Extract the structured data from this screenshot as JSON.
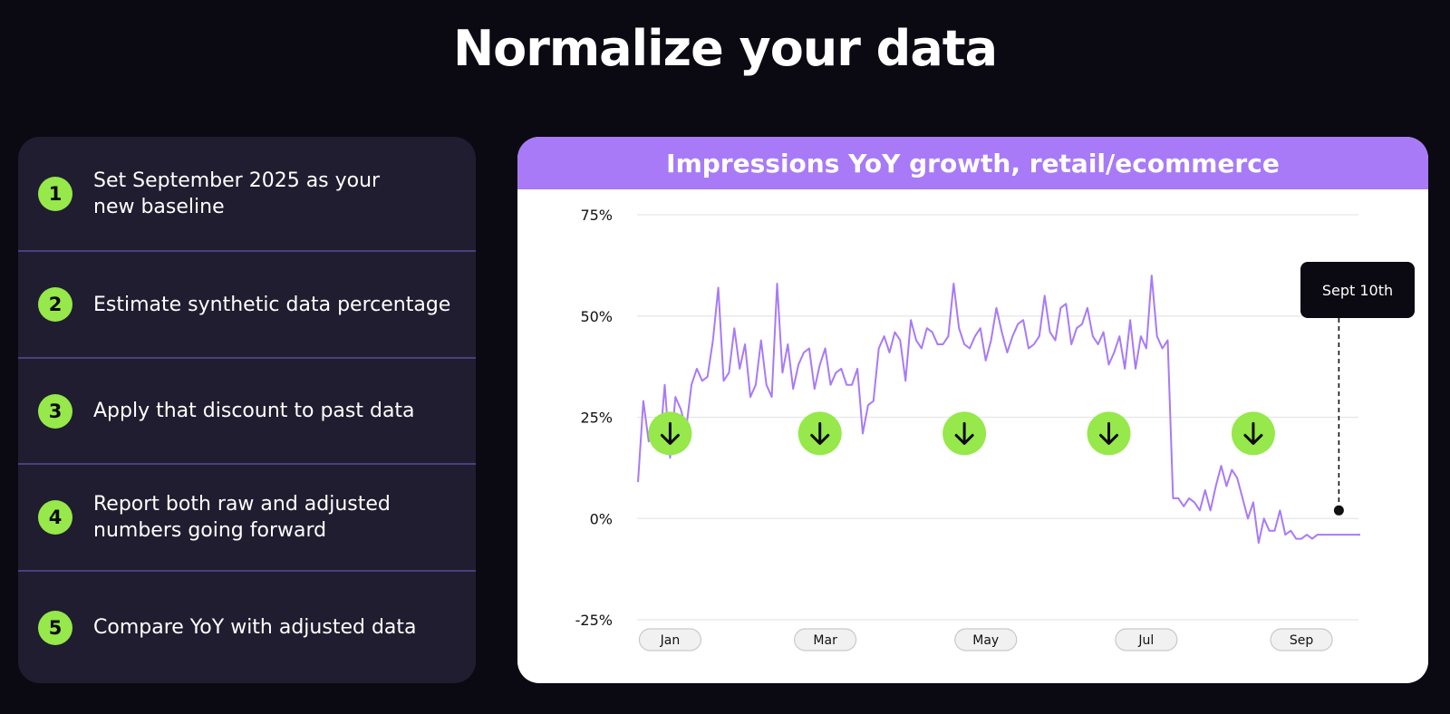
{
  "page": {
    "title": "Normalize your data"
  },
  "steps": [
    {
      "number": "1",
      "text": "Set September 2025 as your new baseline"
    },
    {
      "number": "2",
      "text": "Estimate synthetic data percentage"
    },
    {
      "number": "3",
      "text": "Apply that discount to past data"
    },
    {
      "number": "4",
      "text": "Report both raw and adjusted numbers going forward"
    },
    {
      "number": "5",
      "text": "Compare YoY with adjusted data"
    }
  ],
  "colors": {
    "background": "#0b0a12",
    "panel": "#201d30",
    "accent_green": "#96e84b",
    "accent_purple": "#a87af7",
    "divider": "#4a3f80"
  },
  "chart_data": {
    "type": "line",
    "title": "Impressions YoY growth, retail/ecommerce",
    "xlabel": "",
    "ylabel": "",
    "ylim": [
      -25,
      75
    ],
    "xlim": [
      0,
      270
    ],
    "yticks": [
      75,
      50,
      25,
      0,
      -25
    ],
    "ytick_labels": [
      "75%",
      "50%",
      "25%",
      "0%",
      "-25%"
    ],
    "x_month_labels": [
      {
        "label": "Jan",
        "x": 12
      },
      {
        "label": "Mar",
        "x": 70
      },
      {
        "label": "May",
        "x": 130
      },
      {
        "label": "Jul",
        "x": 190
      },
      {
        "label": "Sep",
        "x": 248
      }
    ],
    "grid": true,
    "series": [
      {
        "name": "Impressions YoY growth",
        "color": "#a87af7",
        "x": [
          0,
          2,
          4,
          6,
          8,
          10,
          12,
          14,
          16,
          18,
          20,
          22,
          24,
          26,
          28,
          30,
          32,
          34,
          36,
          38,
          40,
          42,
          44,
          46,
          48,
          50,
          52,
          54,
          56,
          58,
          60,
          62,
          64,
          66,
          68,
          70,
          72,
          74,
          76,
          78,
          80,
          82,
          84,
          86,
          88,
          90,
          92,
          94,
          96,
          98,
          100,
          102,
          104,
          106,
          108,
          110,
          112,
          114,
          116,
          118,
          120,
          122,
          124,
          126,
          128,
          130,
          132,
          134,
          136,
          138,
          140,
          142,
          144,
          146,
          148,
          150,
          152,
          154,
          156,
          158,
          160,
          162,
          164,
          166,
          168,
          170,
          172,
          174,
          176,
          178,
          180,
          182,
          184,
          186,
          188,
          190,
          192,
          194,
          196,
          198,
          200,
          202,
          204,
          206,
          208,
          210,
          212,
          214,
          216,
          218,
          220,
          222,
          224,
          226,
          228,
          230,
          232,
          234,
          236,
          238,
          240,
          242,
          244,
          246,
          248,
          250,
          252,
          254,
          256,
          258,
          260,
          262,
          264,
          266,
          268,
          270
        ],
        "values": [
          9,
          29,
          19,
          24,
          17,
          33,
          15,
          30,
          27,
          22,
          33,
          37,
          34,
          35,
          44,
          57,
          34,
          36,
          47,
          37,
          43,
          30,
          33,
          44,
          33,
          30,
          58,
          36,
          43,
          32,
          38,
          41,
          42,
          32,
          38,
          42,
          33,
          36,
          37,
          33,
          33,
          37,
          21,
          28,
          29,
          42,
          45,
          41,
          46,
          44,
          34,
          49,
          44,
          42,
          47,
          46,
          43,
          43,
          45,
          58,
          47,
          43,
          42,
          45,
          47,
          39,
          44,
          52,
          46,
          41,
          45,
          48,
          49,
          42,
          43,
          45,
          55,
          46,
          44,
          52,
          53,
          43,
          47,
          48,
          52,
          45,
          43,
          46,
          38,
          41,
          45,
          37,
          49,
          37,
          45,
          42,
          60,
          45,
          42,
          44,
          5,
          5,
          3,
          5,
          4,
          2,
          7,
          2,
          8,
          13,
          8,
          12,
          10,
          5,
          0,
          4,
          -6,
          0,
          -3,
          -3,
          2,
          -4,
          -3,
          -5,
          -5,
          -4,
          -5,
          -4,
          -4,
          -4,
          -4,
          -4,
          -4,
          -4,
          -4,
          -4
        ]
      }
    ],
    "markers": [
      {
        "type": "down-arrow",
        "x": 12,
        "y": 21
      },
      {
        "type": "down-arrow",
        "x": 68,
        "y": 21
      },
      {
        "type": "down-arrow",
        "x": 122,
        "y": 21
      },
      {
        "type": "down-arrow",
        "x": 176,
        "y": 21
      },
      {
        "type": "down-arrow",
        "x": 230,
        "y": 21
      }
    ],
    "callout": {
      "label": "Sept 10th",
      "x": 262,
      "y": 2
    }
  }
}
